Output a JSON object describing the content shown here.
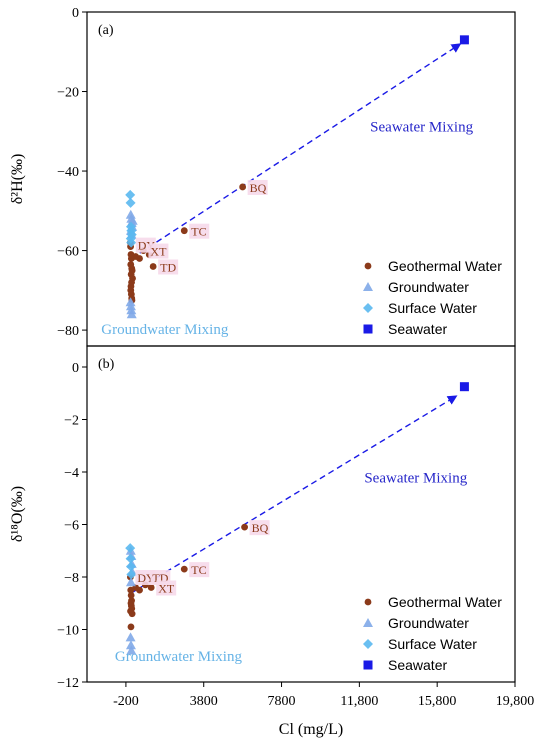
{
  "colors": {
    "geothermal": "#8b3a1a",
    "groundwater": "#7fa8e8",
    "surface": "#5ab8f0",
    "seawater": "#1a1ae6",
    "seawater_annot": "#2626c9",
    "groundwater_annot": "#66b3e6",
    "label_bg": "#f6d9ea"
  },
  "chart_data": [
    {
      "type": "scatter",
      "panel_tag": "(a)",
      "ylabel": "δ²H(‰)",
      "ylim": [
        -84,
        0
      ],
      "yticks": [
        0,
        -20,
        -40,
        -60,
        -80
      ],
      "ytick_labels": [
        "0",
        "−20",
        "−40",
        "−60",
        "−80"
      ],
      "xlim": [
        -2200,
        19800
      ],
      "legend_position": "bottom-right",
      "series": [
        {
          "name": "Geothermal Water",
          "marker": "circle",
          "color_key": "geothermal",
          "points": [
            [
              30,
              -58
            ],
            [
              40,
              -59
            ],
            [
              60,
              -61
            ],
            [
              80,
              -62
            ],
            [
              50,
              -63.5
            ],
            [
              100,
              -64.5
            ],
            [
              120,
              -65
            ],
            [
              70,
              -66
            ],
            [
              140,
              -67
            ],
            [
              90,
              -68
            ],
            [
              60,
              -69
            ],
            [
              50,
              -70
            ],
            [
              80,
              -71
            ],
            [
              100,
              -72
            ],
            [
              110,
              -72.5
            ],
            [
              300,
              -61.5
            ],
            [
              500,
              -62
            ],
            [
              700,
              -60
            ],
            [
              1000,
              -61
            ],
            [
              1200,
              -64
            ],
            [
              2800,
              -55
            ],
            [
              5800,
              -44
            ]
          ]
        },
        {
          "name": "Groundwater",
          "marker": "triangle",
          "color_key": "groundwater",
          "points": [
            [
              50,
              -51
            ],
            [
              80,
              -52
            ],
            [
              100,
              -53
            ],
            [
              120,
              -54
            ],
            [
              60,
              -55
            ],
            [
              90,
              -56
            ],
            [
              150,
              -52.5
            ],
            [
              40,
              -73
            ],
            [
              60,
              -74
            ],
            [
              80,
              -75
            ],
            [
              100,
              -76
            ]
          ]
        },
        {
          "name": "Surface Water",
          "marker": "diamond",
          "color_key": "surface",
          "points": [
            [
              20,
              -46
            ],
            [
              40,
              -48
            ],
            [
              60,
              -54
            ],
            [
              80,
              -55
            ],
            [
              100,
              -56
            ],
            [
              50,
              -57
            ],
            [
              70,
              -58
            ]
          ]
        },
        {
          "name": "Seawater",
          "marker": "square",
          "color_key": "seawater",
          "points": [
            [
              17200,
              -7
            ]
          ]
        }
      ],
      "mixing_line": {
        "from": [
          80,
          -62
        ],
        "to": [
          17000,
          -8
        ]
      },
      "point_labels": [
        {
          "text": "BQ",
          "x": 5800,
          "y": -44
        },
        {
          "text": "TC",
          "x": 2800,
          "y": -55
        },
        {
          "text": "DY",
          "x": 50,
          "y": -58.5
        },
        {
          "text": "XT",
          "x": 700,
          "y": -60
        },
        {
          "text": "TD",
          "x": 1200,
          "y": -64
        }
      ],
      "annotations": [
        {
          "text": "Seawater Mixing",
          "x": 15000,
          "y": -30,
          "color_key": "seawater_annot"
        },
        {
          "text": "Groundwater Mixing",
          "x": 1800,
          "y": -81,
          "color_key": "groundwater_annot"
        }
      ]
    },
    {
      "type": "scatter",
      "panel_tag": "(b)",
      "ylabel": "δ¹⁸O(‰)",
      "ylim": [
        -12,
        0.8
      ],
      "yticks": [
        0,
        -2,
        -4,
        -6,
        -8,
        -10,
        -12
      ],
      "ytick_labels": [
        "0",
        "−2",
        "−4",
        "−6",
        "−8",
        "−10",
        "−12"
      ],
      "xlim": [
        -2200,
        19800
      ],
      "xticks": [
        -200,
        3800,
        7800,
        11800,
        15800,
        19800
      ],
      "xtick_labels": [
        "-200",
        "3800",
        "7800",
        "11,800",
        "15,800",
        "19,800"
      ],
      "xlabel": "Cl (mg/L)",
      "legend_position": "bottom-right",
      "series": [
        {
          "name": "Geothermal Water",
          "marker": "circle",
          "color_key": "geothermal",
          "points": [
            [
              30,
              -8
            ],
            [
              50,
              -8.5
            ],
            [
              70,
              -8.7
            ],
            [
              90,
              -8.9
            ],
            [
              60,
              -9.0
            ],
            [
              80,
              -9.1
            ],
            [
              100,
              -9.2
            ],
            [
              40,
              -9.3
            ],
            [
              120,
              -9.4
            ],
            [
              60,
              -9.9
            ],
            [
              300,
              -8.4
            ],
            [
              500,
              -8.5
            ],
            [
              800,
              -8.3
            ],
            [
              1100,
              -8.4
            ],
            [
              2800,
              -7.7
            ],
            [
              5900,
              -6.1
            ]
          ]
        },
        {
          "name": "Groundwater",
          "marker": "triangle",
          "color_key": "groundwater",
          "points": [
            [
              50,
              -7
            ],
            [
              80,
              -7.2
            ],
            [
              100,
              -7.5
            ],
            [
              120,
              -7.8
            ],
            [
              60,
              -8.2
            ],
            [
              40,
              -10.3
            ],
            [
              60,
              -10.6
            ],
            [
              80,
              -10.8
            ]
          ]
        },
        {
          "name": "Surface Water",
          "marker": "diamond",
          "color_key": "surface",
          "points": [
            [
              20,
              -6.9
            ],
            [
              40,
              -7.3
            ],
            [
              60,
              -7.6
            ],
            [
              80,
              -7.9
            ]
          ]
        },
        {
          "name": "Seawater",
          "marker": "square",
          "color_key": "seawater",
          "points": [
            [
              17200,
              -0.75
            ]
          ]
        }
      ],
      "mixing_line": {
        "from": [
          100,
          -8.6
        ],
        "to": [
          16800,
          -1.1
        ]
      },
      "point_labels": [
        {
          "text": "BQ",
          "x": 5900,
          "y": -6.1
        },
        {
          "text": "TC",
          "x": 2800,
          "y": -7.7
        },
        {
          "text": "DY",
          "x": 30,
          "y": -8
        },
        {
          "text": "TD",
          "x": 800,
          "y": -8.0
        },
        {
          "text": "XT",
          "x": 1100,
          "y": -8.4
        }
      ],
      "annotations": [
        {
          "text": "Seawater Mixing",
          "x": 14700,
          "y": -4.4,
          "color_key": "seawater_annot"
        },
        {
          "text": "Groundwater Mixing",
          "x": 2500,
          "y": -11.2,
          "color_key": "groundwater_annot"
        }
      ]
    }
  ]
}
